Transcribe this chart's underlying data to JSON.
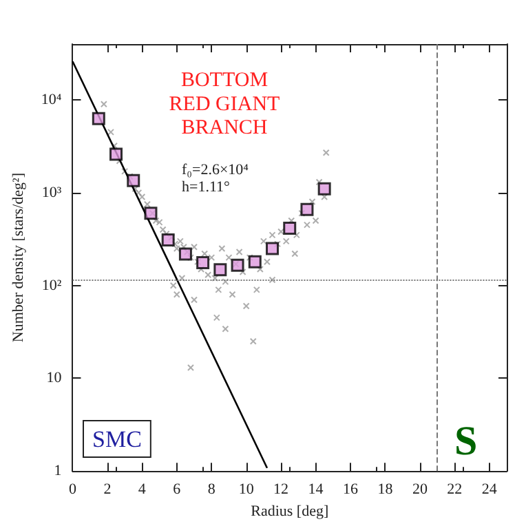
{
  "chart_data": {
    "type": "scatter",
    "xlabel": "Radius [deg]",
    "ylabel": "Number density [stars/deg²]",
    "xlim": [
      0,
      25
    ],
    "xticks": [
      0,
      2,
      4,
      6,
      8,
      10,
      12,
      14,
      16,
      18,
      20,
      22,
      24
    ],
    "ylim": [
      1,
      40000
    ],
    "yticks": [
      {
        "value": 1,
        "label": "1"
      },
      {
        "value": 10,
        "label": "10"
      },
      {
        "value": 100,
        "label": "10²"
      },
      {
        "value": 1000,
        "label": "10³"
      },
      {
        "value": 10000,
        "label": "10⁴"
      }
    ],
    "log": "y",
    "grid": false,
    "annotations": [
      "BOTTOM\nRED GIANT\nBRANCH",
      "f₀=2.6×10⁴\nh=1.11°",
      "SMC",
      "S"
    ],
    "ref_lines": [
      {
        "axis": "y",
        "value": 115,
        "color": "#777777",
        "line_style": "dotted"
      },
      {
        "axis": "x",
        "value": 21,
        "color": "#777777",
        "line_style": "dashed"
      }
    ],
    "series": [
      {
        "type": "scatter",
        "marker": "cross",
        "color": "#999999",
        "x": [
          1.8,
          2.2,
          2.4,
          2.7,
          3.0,
          3.3,
          3.6,
          3.8,
          4.0,
          4.3,
          4.6,
          4.8,
          5.0,
          5.2,
          5.4,
          5.7,
          5.9,
          6.0,
          6.2,
          6.4,
          6.6,
          6.8,
          7.0,
          7.2,
          7.4,
          7.6,
          7.8,
          8.0,
          8.2,
          8.4,
          8.6,
          8.8,
          9.0,
          9.2,
          9.4,
          9.6,
          9.8,
          10.0,
          10.2,
          10.4,
          10.6,
          10.8,
          11.0,
          11.2,
          11.5,
          11.8,
          12.0,
          12.3,
          12.6,
          12.9,
          13.2,
          13.5,
          13.8,
          14.0,
          14.2,
          14.5,
          14.6,
          6.0,
          6.8,
          7.0,
          8.8,
          8.3,
          6.3,
          5.8,
          11.5,
          12.8
        ],
        "values": [
          9000,
          4500,
          3200,
          2200,
          1700,
          1500,
          1100,
          1000,
          900,
          750,
          600,
          500,
          480,
          400,
          360,
          330,
          280,
          250,
          300,
          260,
          230,
          200,
          260,
          180,
          150,
          220,
          130,
          200,
          120,
          90,
          250,
          110,
          200,
          80,
          170,
          230,
          140,
          60,
          200,
          25,
          90,
          150,
          300,
          180,
          350,
          280,
          380,
          300,
          500,
          350,
          600,
          450,
          800,
          500,
          1300,
          900,
          2700,
          80,
          13,
          70,
          34,
          45,
          120,
          100,
          115,
          220
        ]
      },
      {
        "type": "line",
        "marker": "none",
        "color": "#000000",
        "x": [
          0,
          11.2
        ],
        "values": [
          26000,
          1.08
        ]
      },
      {
        "marker": "square",
        "color": "#dd99dd",
        "x": [
          1.5,
          2.5,
          3.5,
          4.5,
          5.5,
          6.5,
          7.5,
          8.5,
          9.5,
          10.5,
          11.5,
          12.5,
          13.5,
          14.5
        ],
        "values": [
          6300,
          2600,
          1350,
          600,
          310,
          218,
          176,
          148,
          165,
          180,
          250,
          415,
          660,
          1100
        ]
      }
    ]
  }
}
